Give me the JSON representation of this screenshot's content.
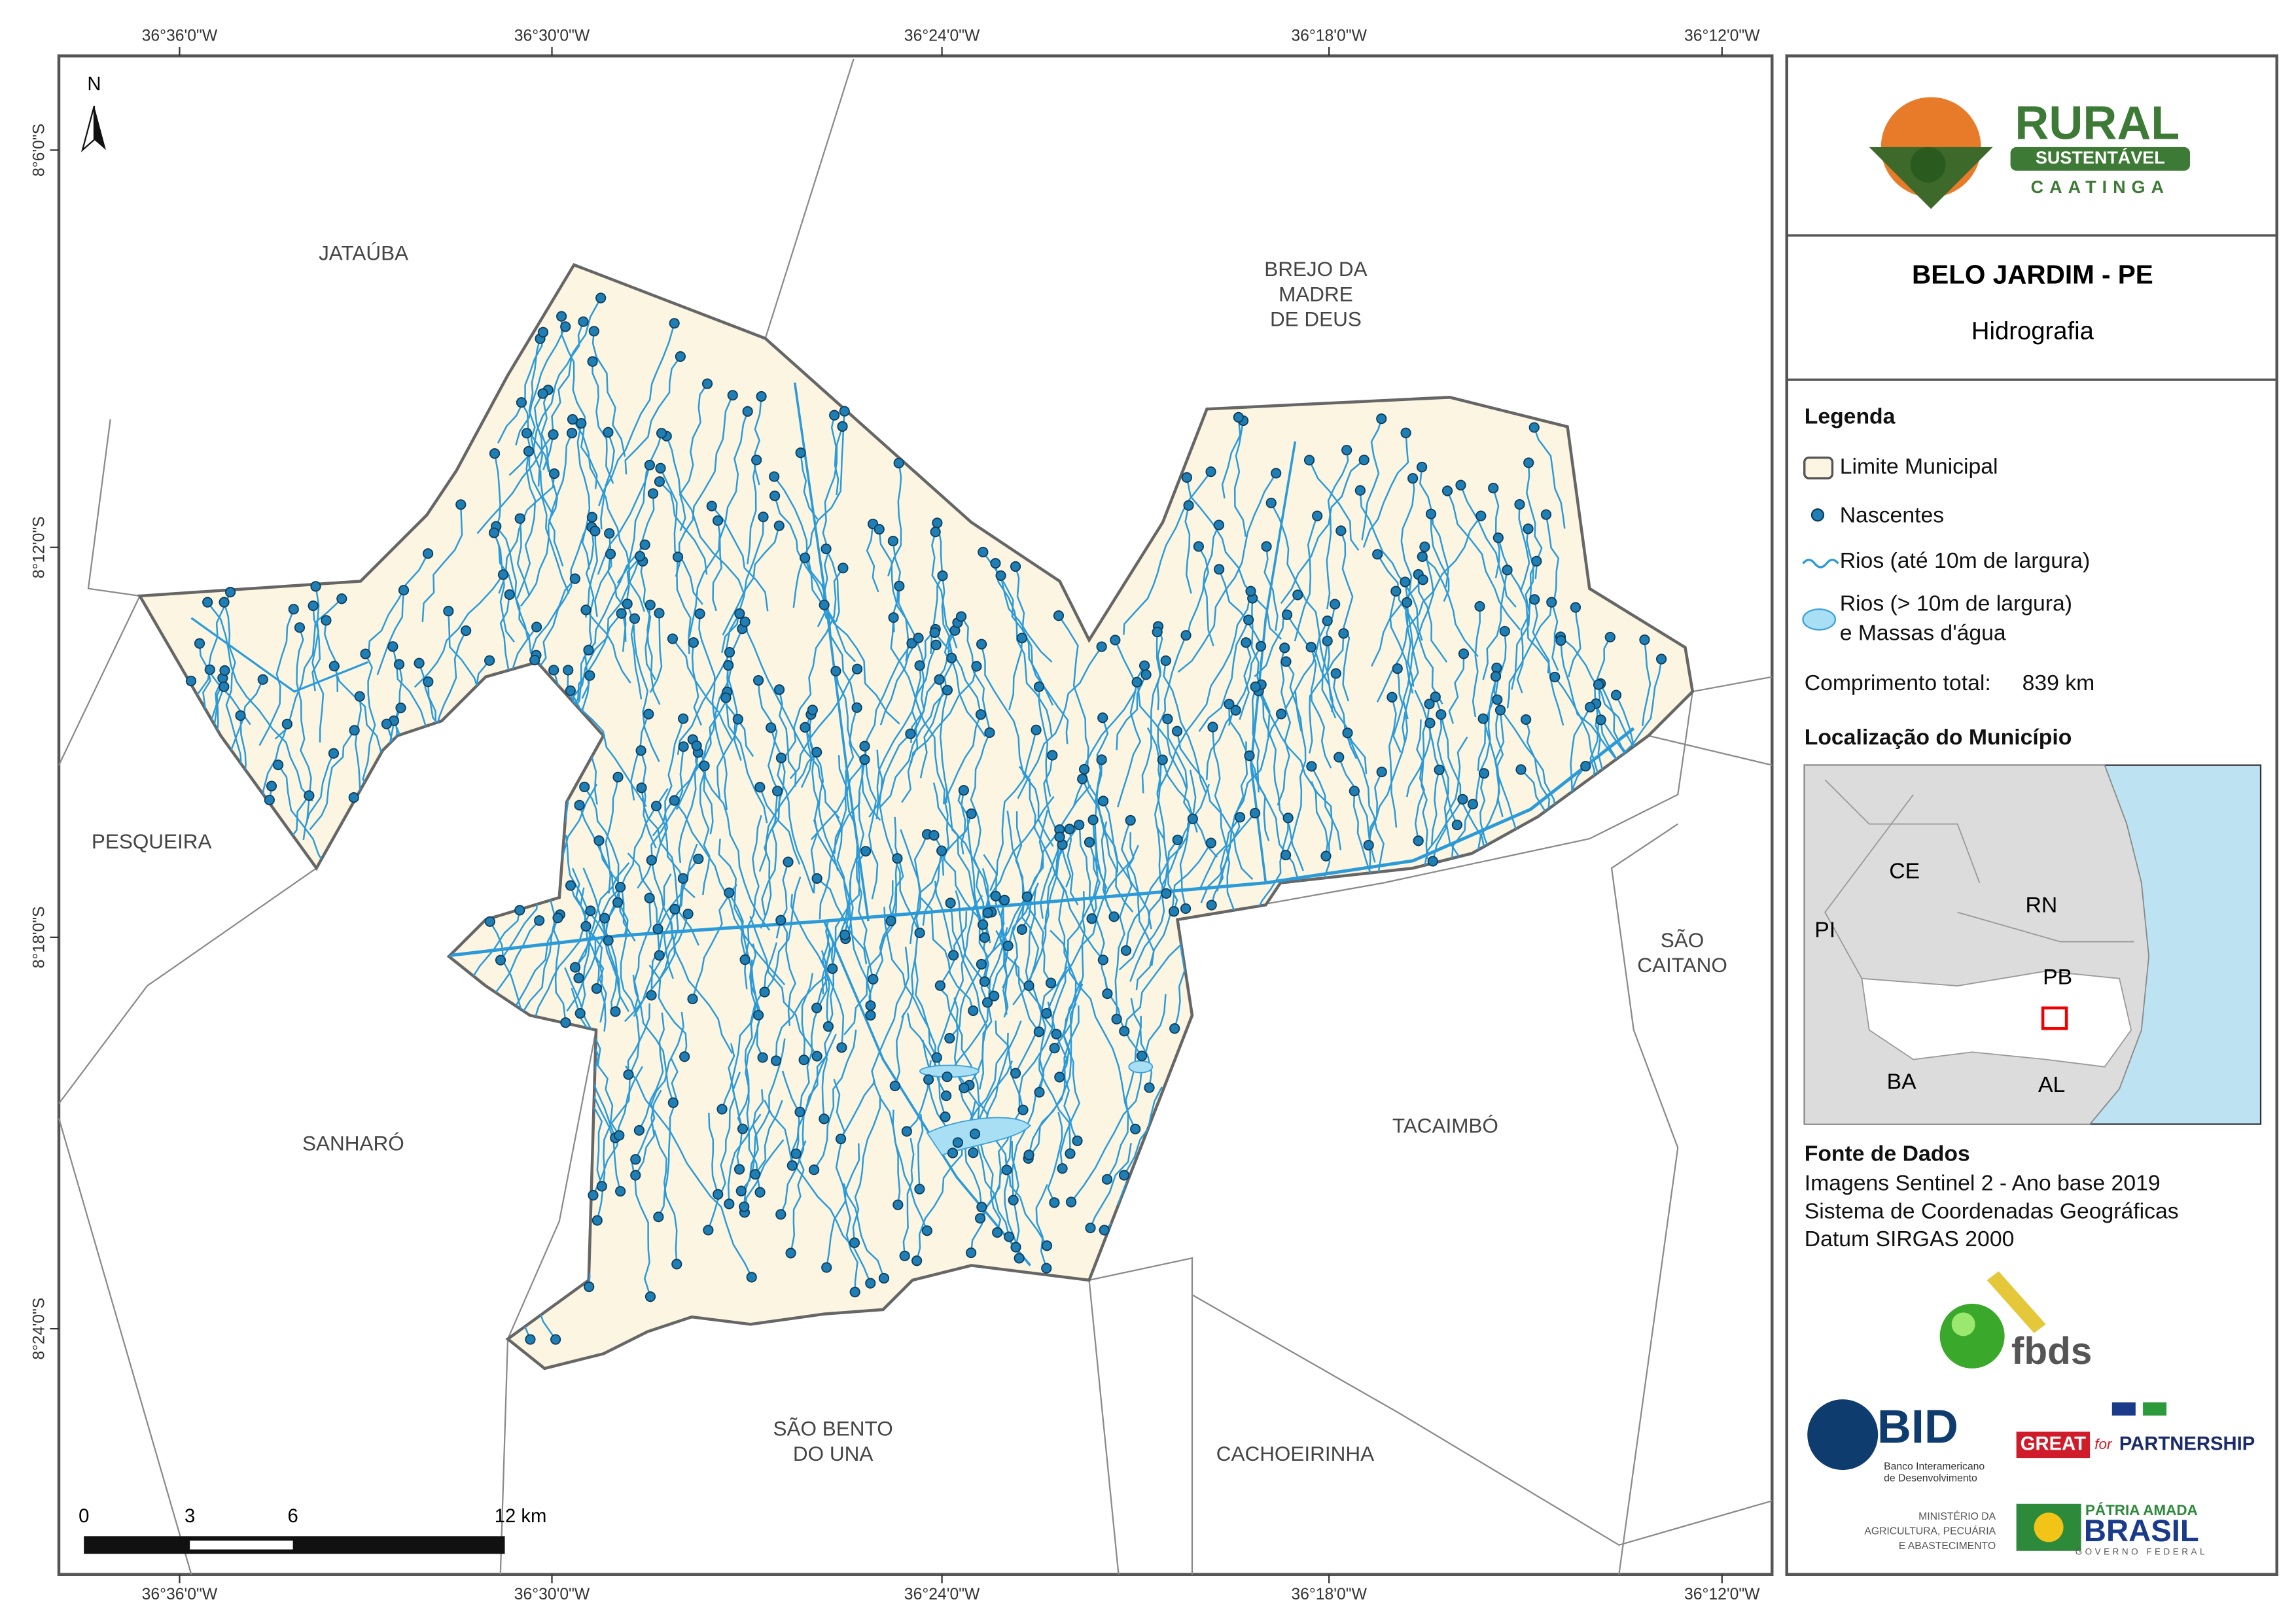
{
  "map": {
    "north": "N",
    "coords": {
      "top": [
        "36°36'0\"W",
        "36°30'0\"W",
        "36°24'0\"W",
        "36°18'0\"W",
        "36°12'0\"W"
      ],
      "left": [
        "8°6'0\"S",
        "8°12'0\"S",
        "8°18'0\"S",
        "8°24'0\"S"
      ]
    },
    "neighbors": [
      {
        "lines": [
          "JATAÚBA"
        ]
      },
      {
        "lines": [
          "BREJO DA",
          "MADRE",
          "DE DEUS"
        ]
      },
      {
        "lines": [
          "PESQUEIRA"
        ]
      },
      {
        "lines": [
          "SANHARÓ"
        ]
      },
      {
        "lines": [
          "SÃO BENTO",
          "DO UNA"
        ]
      },
      {
        "lines": [
          "CACHOEIRINHA"
        ]
      },
      {
        "lines": [
          "TACAIMBÓ"
        ]
      },
      {
        "lines": [
          "SÃO",
          "CAITANO"
        ]
      }
    ],
    "scale": [
      "0",
      "3",
      "6",
      "12 km"
    ]
  },
  "panel": {
    "logo": [
      "RURAL",
      "SUSTENTÁVEL",
      "CAATINGA"
    ],
    "title": "BELO JARDIM - PE",
    "subtitle": "Hidrografia",
    "legend": {
      "title": "Legenda",
      "items": [
        {
          "lines": [
            "Limite Municipal"
          ]
        },
        {
          "lines": [
            "Nascentes"
          ]
        },
        {
          "lines": [
            "Rios (até 10m de largura)"
          ]
        },
        {
          "lines": [
            "Rios (> 10m de largura)",
            "e Massas d'água"
          ]
        }
      ],
      "length_label": "Comprimento total:",
      "length": "839 km"
    },
    "location": {
      "title": "Localização do Município",
      "states": [
        "CE",
        "RN",
        "PI",
        "PB",
        "BA",
        "AL"
      ]
    },
    "sources": {
      "title": "Fonte de Dados",
      "lines": [
        "Imagens Sentinel 2 - Ano base 2019",
        "Sistema de Coordenadas Geográficas",
        "Datum SIRGAS 2000"
      ]
    },
    "sponsors": {
      "fbds": "fbds",
      "bid": "BID",
      "bid_name": [
        "Banco Interamericano",
        "de Desenvolvimento"
      ],
      "great": "GREAT",
      "for": "for",
      "partnership": "PARTNERSHIP",
      "ministry": [
        "MINISTÉRIO DA",
        "AGRICULTURA, PECUÁRIA",
        "E ABASTECIMENTO"
      ],
      "patria": "PÁTRIA AMADA",
      "brasil": "BRASIL",
      "gov": "GOVERNO FEDERAL"
    }
  }
}
